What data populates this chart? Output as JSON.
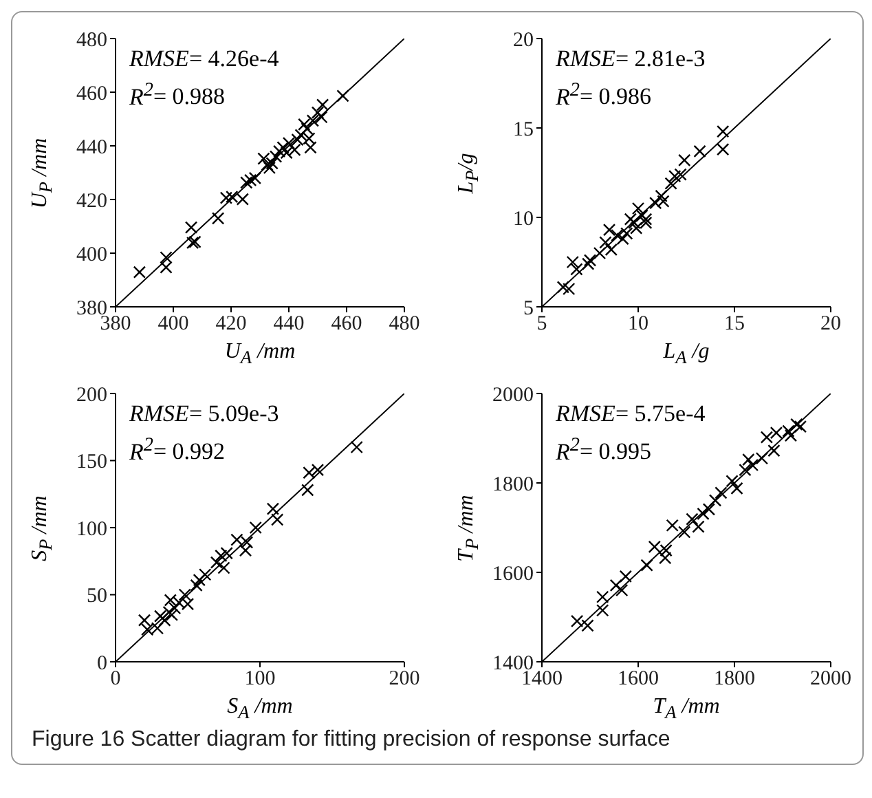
{
  "chart_data": [
    {
      "type": "scatter",
      "xlabel": "U$_{A}$ /mm",
      "ylabel": "U$_{P}$ /mm",
      "xlim": [
        380,
        480
      ],
      "ylim": [
        380,
        480
      ],
      "xticks": [
        380,
        400,
        420,
        440,
        460,
        480
      ],
      "yticks": [
        380,
        400,
        420,
        440,
        460,
        480
      ],
      "annotations": [
        "RMSE= 4.26e-4",
        "R$^{2}$= 0.988"
      ],
      "series": [
        {
          "marker": "cross",
          "color": "#000000",
          "x": [
            388.3,
            397.5,
            397.5,
            406.2,
            406.7,
            407.5,
            415.5,
            418.3,
            420.3,
            424,
            425.3,
            426.7,
            428.3,
            431.3,
            432.5,
            433.3,
            434.2,
            435.5,
            436.7,
            438,
            439.2,
            440,
            442,
            443,
            444.2,
            445.3,
            446.3,
            447,
            447.5,
            448.3,
            450,
            451.3,
            451.7,
            458.7
          ],
          "values": [
            392.9,
            398.4,
            394.7,
            409.6,
            403.9,
            404.2,
            413,
            420.6,
            421,
            420.1,
            426.3,
            427.2,
            428,
            435.2,
            433,
            431.8,
            433.5,
            436,
            438,
            439.4,
            437.4,
            441,
            438.5,
            442.3,
            444,
            448,
            446.4,
            442.7,
            439.4,
            449.4,
            452.4,
            450.7,
            455.3,
            458.6
          ]
        },
        {
          "type": "line",
          "marker": "none",
          "color": "#000000",
          "x": [
            380,
            480
          ],
          "values": [
            380,
            480
          ]
        }
      ]
    },
    {
      "type": "scatter",
      "xlabel": "L$_{A}$ /g",
      "ylabel": "L$_{P}$/g",
      "xlim": [
        5,
        20
      ],
      "ylim": [
        5,
        20
      ],
      "xticks": [
        5,
        10,
        15,
        20
      ],
      "yticks": [
        5,
        10,
        15,
        20
      ],
      "annotations": [
        "RMSE= 2.81e-3",
        "R$^{2}$= 0.986"
      ],
      "series": [
        {
          "marker": "cross",
          "color": "#000000",
          "x": [
            6.1,
            6.4,
            6.6,
            6.8,
            7.4,
            7.5,
            8.0,
            8.3,
            8.5,
            8.6,
            8.9,
            9.2,
            9.4,
            9.6,
            9.8,
            9.9,
            10.0,
            10.2,
            10.4,
            10.4,
            10.9,
            11.2,
            11.3,
            11.7,
            11.9,
            12.2,
            12.4,
            13.2,
            14.4,
            14.4
          ],
          "values": [
            6.1,
            6.0,
            7.5,
            7.1,
            7.4,
            7.6,
            8.0,
            8.6,
            9.3,
            8.2,
            9.0,
            8.8,
            9.1,
            9.9,
            9.7,
            9.4,
            10.5,
            10.1,
            9.9,
            9.7,
            10.8,
            11.2,
            10.9,
            11.9,
            12.3,
            12.4,
            13.2,
            13.7,
            13.8,
            14.8
          ]
        },
        {
          "type": "line",
          "marker": "none",
          "color": "#000000",
          "x": [
            5,
            20
          ],
          "values": [
            5,
            20
          ]
        }
      ]
    },
    {
      "type": "scatter",
      "xlabel": "S$_{A}$ /mm",
      "ylabel": "S$_{P}$ /mm",
      "xlim": [
        0,
        200
      ],
      "ylim": [
        0,
        200
      ],
      "xticks": [
        0,
        100,
        200
      ],
      "yticks": [
        0,
        50,
        100,
        150,
        200
      ],
      "annotations": [
        "RMSE= 5.09e-3",
        "R$^{2}$= 0.992"
      ],
      "series": [
        {
          "marker": "cross",
          "color": "#000000",
          "x": [
            20,
            22,
            29,
            31,
            34,
            37,
            38,
            39,
            41,
            44,
            48,
            50,
            56,
            58,
            62,
            70,
            73,
            75,
            77,
            84,
            90,
            91,
            97,
            109,
            112,
            133,
            134,
            140,
            167
          ],
          "values": [
            31,
            24,
            25,
            34,
            31,
            37,
            46,
            35,
            40,
            44,
            50,
            43,
            57,
            61,
            65,
            74,
            79,
            70,
            81,
            91,
            83,
            89,
            100,
            114,
            106,
            128,
            141,
            143,
            160
          ]
        },
        {
          "type": "line",
          "marker": "none",
          "color": "#000000",
          "x": [
            0,
            200
          ],
          "values": [
            0,
            200
          ]
        }
      ]
    },
    {
      "type": "scatter",
      "xlabel": "T$_{A}$ /mm",
      "ylabel": "T$_{P}$ /mm",
      "xlim": [
        1400,
        2000
      ],
      "ylim": [
        1400,
        2000
      ],
      "xticks": [
        1400,
        1600,
        1800,
        2000
      ],
      "yticks": [
        1400,
        1600,
        1800,
        2000
      ],
      "annotations": [
        "RMSE= 5.75e-4",
        "R$^{2}$= 0.995",
        "Figure 16  Scatter diagram for fitting precision of response surface"
      ],
      "series": [
        {
          "marker": "cross",
          "color": "#000000",
          "x": [
            1473,
            1495,
            1526,
            1526,
            1554,
            1566,
            1574,
            1618,
            1634,
            1656,
            1658,
            1671,
            1696,
            1712,
            1725,
            1735,
            1747,
            1760,
            1772,
            1795,
            1805,
            1822,
            1829,
            1837,
            1857,
            1867,
            1882,
            1887,
            1912,
            1917,
            1929,
            1937
          ],
          "values": [
            1491,
            1481,
            1545,
            1515,
            1571,
            1560,
            1591,
            1616,
            1657,
            1632,
            1649,
            1705,
            1690,
            1719,
            1702,
            1731,
            1741,
            1761,
            1778,
            1804,
            1788,
            1829,
            1852,
            1840,
            1855,
            1902,
            1872,
            1912,
            1916,
            1906,
            1931,
            1926
          ]
        },
        {
          "type": "line",
          "marker": "none",
          "color": "#000000",
          "x": [
            1400,
            2000
          ],
          "values": [
            1400,
            2000
          ]
        }
      ]
    }
  ]
}
